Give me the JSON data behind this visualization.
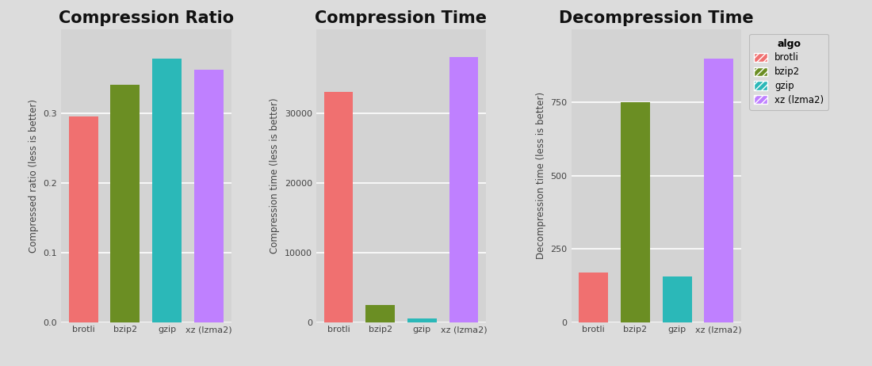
{
  "categories": [
    "brotli",
    "bzip2",
    "gzip",
    "xz (lzma2)"
  ],
  "compression_ratio": [
    0.295,
    0.34,
    0.378,
    0.362
  ],
  "compression_time": [
    33000,
    2500,
    500,
    38000
  ],
  "decompression_time": [
    170,
    750,
    155,
    900
  ],
  "colors": [
    "#F07070",
    "#6B8E23",
    "#2BB8B8",
    "#BF80FF"
  ],
  "titles": [
    "Compression Ratio",
    "Compression Time",
    "Decompression Time"
  ],
  "ylabels": [
    "Compressed ratio (less is better)",
    "Compression time (less is better)",
    "Decompression time (less is better)"
  ],
  "yticks_ratio": [
    0.0,
    0.1,
    0.2,
    0.3
  ],
  "yticks_ctime": [
    0,
    10000,
    20000,
    30000
  ],
  "yticks_dtime": [
    0,
    250,
    500,
    750
  ],
  "ylim_ratio": [
    0,
    0.42
  ],
  "ylim_ctime": [
    0,
    42000
  ],
  "ylim_dtime": [
    0,
    1000
  ],
  "legend_title": "algo",
  "legend_labels": [
    "brotli",
    "bzip2",
    "gzip",
    "xz (lzma2)"
  ],
  "background_color": "#DCDCDC",
  "panel_bg": "#D3D3D3",
  "title_fontsize": 15,
  "label_fontsize": 8.5,
  "tick_fontsize": 8
}
